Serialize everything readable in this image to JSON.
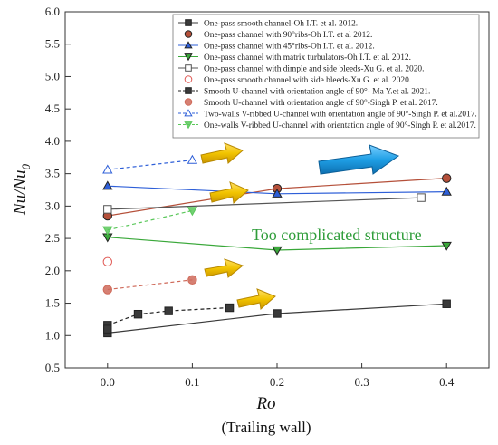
{
  "chart_data": {
    "type": "scatter",
    "title": "",
    "xlabel": "Ro",
    "xlabel_sub": "(Trailing wall)",
    "ylabel": "Nu/Nu",
    "ylabel_sub": "0",
    "xlim": [
      -0.05,
      0.45
    ],
    "ylim": [
      0.5,
      6.0
    ],
    "xticks": [
      "0.0",
      "0.1",
      "0.2",
      "0.3",
      "0.4"
    ],
    "yticks": [
      "0.5",
      "1.0",
      "1.5",
      "2.0",
      "2.5",
      "3.0",
      "3.5",
      "4.0",
      "4.5",
      "5.0",
      "5.5",
      "6.0"
    ],
    "grid": false,
    "legend_position": "top-right",
    "annotation": "Too complicated  structure",
    "series": [
      {
        "name": "One-pass smooth channel-Oh I.T. et al. 2012.",
        "marker": "square-filled",
        "color": "#3a3a3a",
        "line": "solid",
        "x": [
          0.0,
          0.2,
          0.4
        ],
        "y": [
          1.04,
          1.34,
          1.49
        ]
      },
      {
        "name": "One-pass channel  with 90°ribs-Oh I.T. et al 2012.",
        "marker": "circle-filled",
        "color": "#b5503a",
        "line": "solid",
        "x": [
          0.0,
          0.2,
          0.4
        ],
        "y": [
          2.85,
          3.27,
          3.43
        ]
      },
      {
        "name": "One-pass channel  with 45°ribs-Oh I.T. et al. 2012.",
        "marker": "triangle-up-filled",
        "color": "#2e5fd8",
        "line": "solid",
        "x": [
          0.0,
          0.2,
          0.4
        ],
        "y": [
          3.31,
          3.19,
          3.22
        ]
      },
      {
        "name": "One-pass channel  with matrix turbulators-Oh I.T. et al. 2012.",
        "marker": "triangle-down-filled",
        "color": "#3aa83a",
        "line": "solid",
        "x": [
          0.0,
          0.2,
          0.4
        ],
        "y": [
          2.52,
          2.32,
          2.39
        ]
      },
      {
        "name": "One-pass channel with dimple and side bleeds-Xu G. et al. 2020.",
        "marker": "square-open",
        "color": "#555555",
        "line": "solid",
        "x": [
          0.0,
          0.37
        ],
        "y": [
          2.95,
          3.13
        ]
      },
      {
        "name": "One-pass smooth channel with side bleeds-Xu G. et al. 2020.",
        "marker": "circle-open",
        "color": "#e05a55",
        "line": "none",
        "x": [
          0.0
        ],
        "y": [
          2.14
        ]
      },
      {
        "name": "Smooth U-channel with orientation angle of 90°- Ma Y.et al. 2021.",
        "marker": "square-filled",
        "color": "#3a3a3a",
        "line": "dashed",
        "x": [
          0.0,
          0.0,
          0.036,
          0.072,
          0.144
        ],
        "y": [
          1.16,
          1.1,
          1.33,
          1.38,
          1.43
        ]
      },
      {
        "name": "Smooth U-channel with orientation angle of 90°-Singh P. et al. 2017.",
        "marker": "circle-filled-light",
        "color": "#cf6a5a",
        "line": "dashed",
        "x": [
          0.0,
          0.1
        ],
        "y": [
          1.71,
          1.86
        ]
      },
      {
        "name": "Two-walls V-ribbed U-channel with orientation angle of 90°-Singh P. et al.2017.",
        "marker": "triangle-up-open",
        "color": "#2e5fd8",
        "line": "dashed",
        "x": [
          0.0,
          0.1
        ],
        "y": [
          3.56,
          3.71
        ]
      },
      {
        "name": "One-walls V-ribbed U-channel with orientation angle of 90°-Singh P. et al.2017.",
        "marker": "triangle-down-filled-light",
        "color": "#5bc85b",
        "line": "dashed",
        "x": [
          0.0,
          0.1
        ],
        "y": [
          2.63,
          2.93
        ]
      }
    ]
  },
  "colors": {
    "arrow_gold": "#f2c400",
    "arrow_blue": "#1f9fe6",
    "annotation": "#2f9d3a"
  }
}
